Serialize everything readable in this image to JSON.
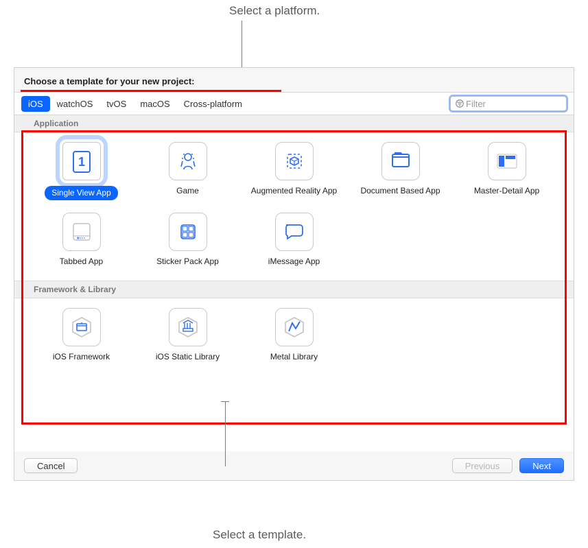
{
  "annotations": {
    "top_label": "Select a platform.",
    "bottom_label": "Select a template."
  },
  "colors": {
    "accent": "#0a66ff",
    "highlight_border": "#ff0000",
    "selection_ring": "#bcd5ff",
    "icon_blue": "#2e6ff2",
    "dialog_bg": "#f6f6f6",
    "section_bg": "#efefef"
  },
  "dialog": {
    "prompt": "Choose a template for your new project:",
    "tabs": {
      "items": [
        "iOS",
        "watchOS",
        "tvOS",
        "macOS",
        "Cross-platform"
      ],
      "selected_index": 0
    },
    "filter": {
      "placeholder": "Filter",
      "value": ""
    },
    "sections": [
      {
        "title": "Application",
        "templates": [
          {
            "label": "Single View App",
            "icon": "single-view",
            "selected": true
          },
          {
            "label": "Game",
            "icon": "game"
          },
          {
            "label": "Augmented Reality App",
            "icon": "ar"
          },
          {
            "label": "Document Based App",
            "icon": "document"
          },
          {
            "label": "Master-Detail App",
            "icon": "master-detail"
          },
          {
            "label": "Tabbed App",
            "icon": "tabbed"
          },
          {
            "label": "Sticker Pack App",
            "icon": "sticker"
          },
          {
            "label": "iMessage App",
            "icon": "imessage"
          }
        ]
      },
      {
        "title": "Framework & Library",
        "templates": [
          {
            "label": "iOS Framework",
            "icon": "framework"
          },
          {
            "label": "iOS Static Library",
            "icon": "static-lib"
          },
          {
            "label": "Metal Library",
            "icon": "metal"
          }
        ]
      }
    ],
    "buttons": {
      "cancel": "Cancel",
      "previous": "Previous",
      "next": "Next",
      "previous_enabled": false
    }
  }
}
